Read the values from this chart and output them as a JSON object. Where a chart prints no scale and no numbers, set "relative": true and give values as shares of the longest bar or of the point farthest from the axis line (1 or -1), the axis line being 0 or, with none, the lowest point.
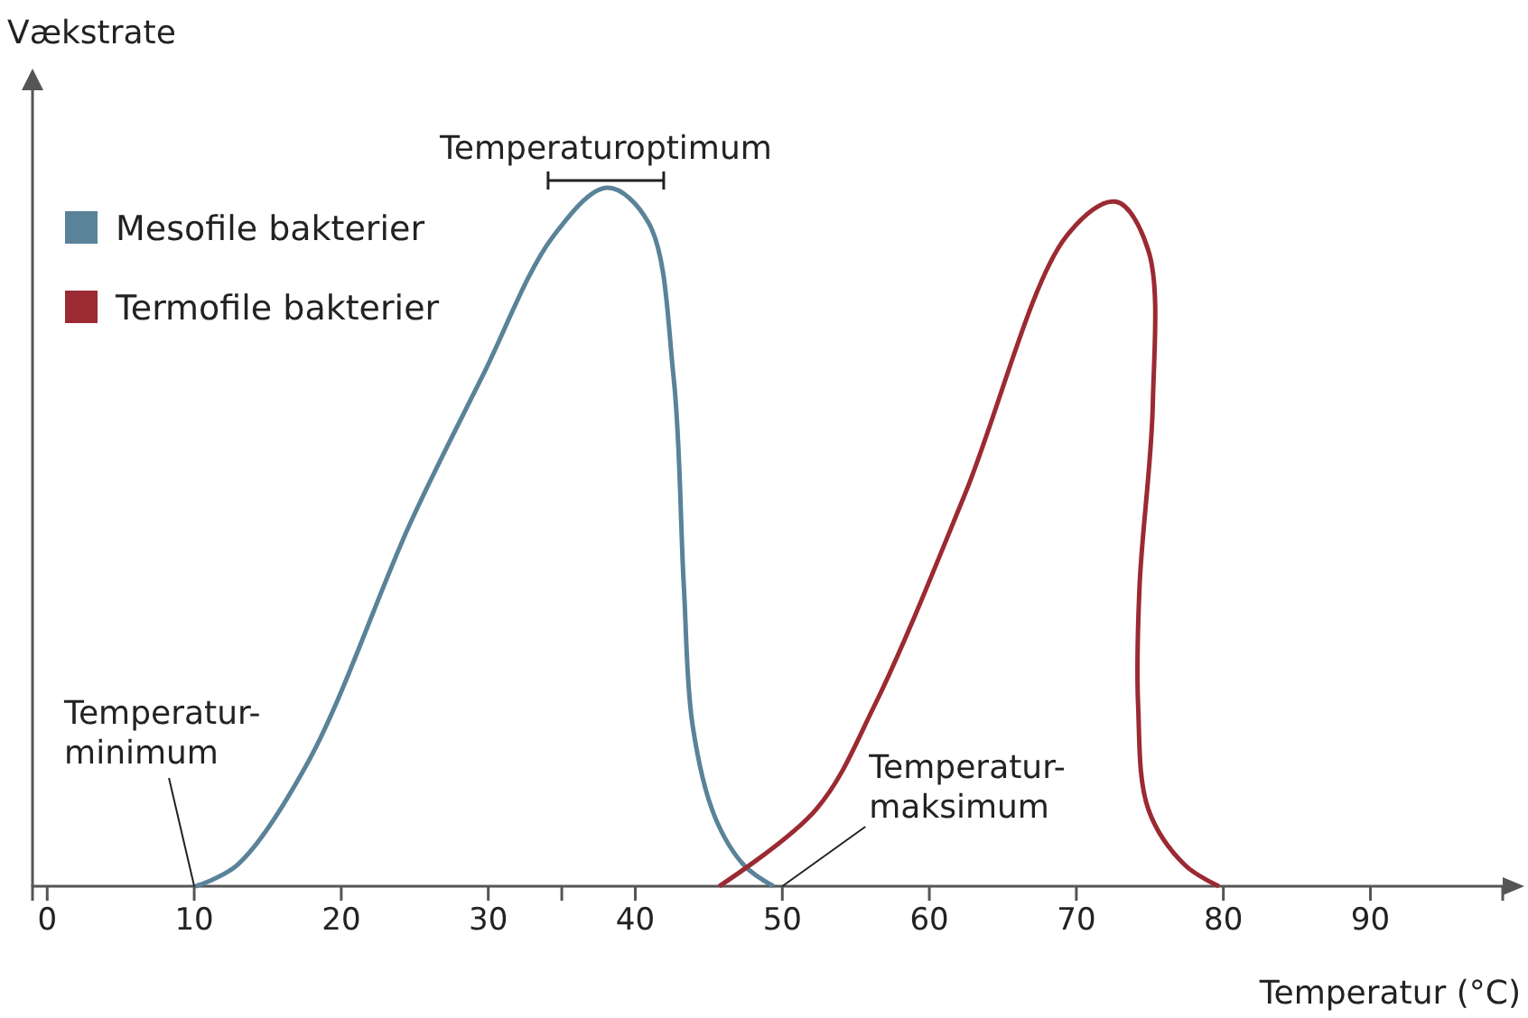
{
  "chart_data": {
    "type": "line",
    "relative": true,
    "xlabel": "Temperatur (°C)",
    "ylabel": "Vækstrate",
    "xlim": [
      -1,
      99
    ],
    "xticks": [
      0,
      10,
      20,
      30,
      {
        "value": 35,
        "label": null
      },
      40,
      50,
      60,
      70,
      80,
      90
    ],
    "legend": "top left",
    "grid": false,
    "marker": "none",
    "line_style": "solid",
    "series": [
      {
        "name": "Mesofile bakterier",
        "color": "#5a8299",
        "x": [
          10.1,
          12.9,
          17.8,
          24.7,
          29.6,
          34.4,
          38.1,
          40.9,
          42.6,
          43.3,
          43.9,
          45.4,
          47.4,
          49.4
        ],
        "values": [
          0,
          0.03,
          0.18,
          0.52,
          0.73,
          0.93,
          1,
          0.95,
          0.73,
          0.43,
          0.23,
          0.1,
          0.03,
          0
        ]
      },
      {
        "name": "Termofile bakterier",
        "color": "#9b2a32",
        "x": [
          45.7,
          52.3,
          56.3,
          62.4,
          69.3,
          72.7,
          74.9,
          75.2,
          74.3,
          74.2,
          74.9,
          77.4,
          79.7
        ],
        "values": [
          0,
          0.11,
          0.26,
          0.56,
          0.93,
          0.98,
          0.91,
          0.69,
          0.43,
          0.26,
          0.11,
          0.03,
          0
        ]
      }
    ],
    "annotations": [
      {
        "text": "Temperatur-\nminimum",
        "x": 10,
        "y": 0
      },
      {
        "text": "Temperatur-\nmaksimum",
        "x": 50,
        "y": 0
      },
      {
        "text": "Temperaturoptimum",
        "x": 38,
        "y": 1
      }
    ]
  }
}
